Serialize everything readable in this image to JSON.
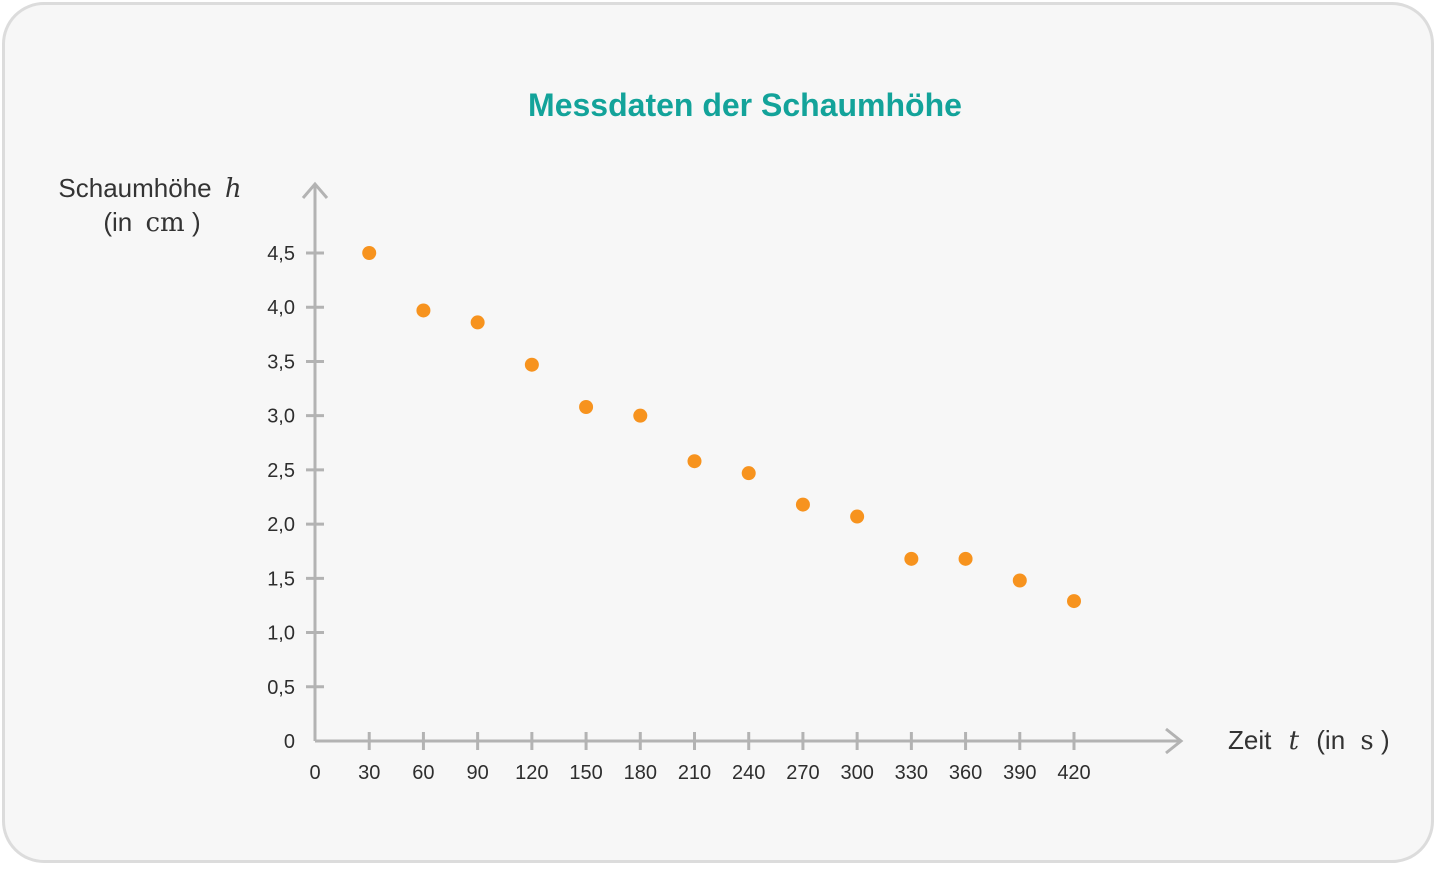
{
  "chart_data": {
    "type": "scatter",
    "title": "Messdaten der Schaumhöhe",
    "xlabel": {
      "prefix": "Zeit",
      "symbol": "t",
      "unit_open": "(in",
      "unit": "s",
      "unit_close": ")"
    },
    "ylabel": {
      "line1_text": "Schaumhöhe",
      "symbol": "h",
      "unit_open": "(in",
      "unit": "cm",
      "unit_close": ")"
    },
    "xlim": [
      0,
      420
    ],
    "ylim": [
      0,
      4.5
    ],
    "x_ticks": [
      0,
      30,
      60,
      90,
      120,
      150,
      180,
      210,
      240,
      270,
      300,
      330,
      360,
      390,
      420
    ],
    "x_tick_labels": [
      "0",
      "30",
      "60",
      "90",
      "120",
      "150",
      "180",
      "210",
      "240",
      "270",
      "300",
      "330",
      "360",
      "390",
      "420"
    ],
    "y_ticks": [
      0,
      0.5,
      1.0,
      1.5,
      2.0,
      2.5,
      3.0,
      3.5,
      4.0,
      4.5
    ],
    "y_tick_labels": [
      "0",
      "0,5",
      "1,0",
      "1,5",
      "2,0",
      "2,5",
      "3,0",
      "3,5",
      "4,0",
      "4,5"
    ],
    "grid": false,
    "point_color": "#f7931e",
    "title_color": "#13a39a",
    "series": [
      {
        "x": [
          30,
          60,
          90,
          120,
          150,
          180,
          210,
          240,
          270,
          300,
          330,
          360,
          390,
          420
        ],
        "y": [
          4.5,
          3.97,
          3.86,
          3.47,
          3.08,
          3.0,
          2.58,
          2.47,
          2.18,
          2.07,
          1.68,
          1.68,
          1.48,
          1.29
        ]
      }
    ]
  }
}
